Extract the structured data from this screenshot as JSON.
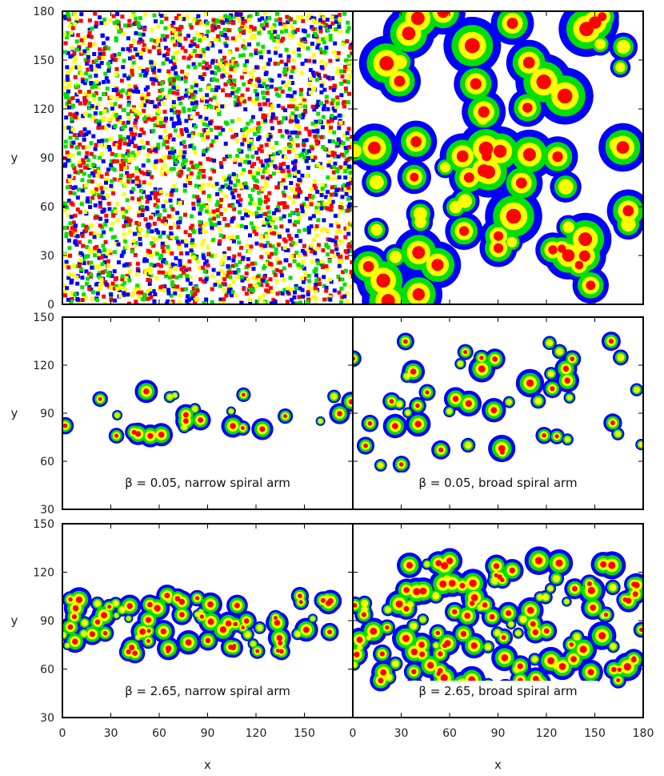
{
  "chart_data": {
    "type": "heatmap",
    "layout": "3 rows x 2 columns, shared x axis",
    "colorscale": [
      "#0000ff",
      "#00e000",
      "#ffff00",
      "#ff0000"
    ],
    "x_axis": {
      "label": "x",
      "range": [
        0,
        180
      ],
      "ticks": [
        "0",
        "30",
        "60",
        "90",
        "120",
        "150",
        "180"
      ]
    },
    "rows": [
      {
        "ylabel": "y",
        "ylim": [
          0,
          180
        ],
        "yticks": [
          "0",
          "30",
          "60",
          "90",
          "120",
          "150",
          "180"
        ],
        "panels": [
          {
            "annotation": "",
            "morphology": "scattered speckle"
          },
          {
            "annotation": "",
            "morphology": "large patches"
          }
        ]
      },
      {
        "ylabel": "y",
        "ylim": [
          30,
          150
        ],
        "yticks": [
          "30",
          "60",
          "90",
          "120",
          "150"
        ],
        "panels": [
          {
            "annotation": "β = 0.05, narrow spiral arm",
            "morphology": "narrow band"
          },
          {
            "annotation": "β = 0.05, broad spiral arm",
            "morphology": "broad band"
          }
        ]
      },
      {
        "ylabel": "y",
        "ylim": [
          30,
          150
        ],
        "yticks": [
          "30",
          "60",
          "90",
          "120",
          "150"
        ],
        "panels": [
          {
            "annotation": "β = 2.65, narrow spiral arm",
            "morphology": "narrow band dense"
          },
          {
            "annotation": "β = 2.65, broad spiral arm",
            "morphology": "broad band dense"
          }
        ]
      }
    ]
  }
}
